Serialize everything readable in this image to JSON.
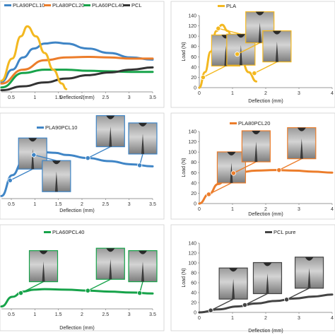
{
  "chart_data": [
    {
      "type": "line",
      "xlabel": "Deflection (mm)",
      "ylabel": "",
      "xlim": [
        0,
        3.5
      ],
      "ylim": [
        0,
        140
      ],
      "xticks": [
        "0.5",
        "1",
        "1.5",
        "2",
        "2.5",
        "3",
        "3.5"
      ],
      "yticks": [],
      "legend": "top",
      "series": [
        {
          "name": "PLA90PCL10",
          "color": "#3f85c6",
          "x": [
            0,
            0.25,
            0.5,
            0.75,
            1,
            1.25,
            1.5,
            2,
            2.5,
            3,
            3.5
          ],
          "y": [
            18,
            40,
            62,
            78,
            87,
            89,
            87,
            78,
            70,
            62,
            58
          ]
        },
        {
          "name": "PLA80PCL20",
          "color": "#ec7d2b",
          "x": [
            0,
            0.5,
            1,
            1.5,
            2,
            2.5,
            3,
            3.5
          ],
          "y": [
            15,
            40,
            57,
            62,
            63,
            62,
            60,
            60
          ]
        },
        {
          "name": "PLA60PCL40",
          "color": "#17a34a",
          "x": [
            0,
            0.5,
            1,
            1.5,
            2,
            2.5,
            3,
            3.5
          ],
          "y": [
            8,
            34,
            40,
            40,
            38,
            37,
            36,
            36
          ]
        },
        {
          "name": "PCL",
          "color": "#333333",
          "x": [
            0,
            0.5,
            1,
            1.5,
            2,
            2.5,
            3,
            3.5
          ],
          "y": [
            3,
            10,
            17,
            24,
            30,
            35,
            40,
            44
          ]
        },
        {
          "name": "",
          "color": "#f3b820",
          "x": [
            0,
            0.25,
            0.45,
            0.6,
            0.8,
            1.0,
            1.2,
            1.4,
            1.5
          ],
          "y": [
            20,
            60,
            100,
            118,
            100,
            70,
            40,
            15,
            5
          ]
        }
      ]
    },
    {
      "type": "line",
      "xlabel": "Deflection (mm)",
      "ylabel": "Load (N)",
      "xlim": [
        0,
        3.5
      ],
      "ylim": [
        0,
        140
      ],
      "xticks": [
        "0",
        "1",
        "2",
        "3",
        "4"
      ],
      "yticks": [
        "0",
        "20",
        "40",
        "60",
        "80",
        "100",
        "120",
        "140"
      ],
      "legend": "top",
      "series": [
        {
          "name": "PLA",
          "color": "#f3b820",
          "x": [
            0,
            0.15,
            0.3,
            0.45,
            0.6,
            0.75,
            0.9,
            1.1,
            1.3,
            1.5
          ],
          "y": [
            0,
            30,
            70,
            110,
            122,
            110,
            85,
            55,
            30,
            12
          ],
          "markers": [
            [
              0.1,
              20
            ],
            [
              0.5,
              115
            ],
            [
              1.0,
              65
            ],
            [
              1.45,
              28
            ]
          ]
        }
      ]
    },
    {
      "type": "line",
      "xlabel": "Deflection (mm)",
      "ylabel": "",
      "xlim": [
        0,
        3.5
      ],
      "ylim": [
        0,
        140
      ],
      "xticks": [
        "0.5",
        "1",
        "1.5",
        "2",
        "2.5",
        "3",
        "3.5"
      ],
      "yticks": [],
      "legend": "top",
      "series": [
        {
          "name": "PLA90PCL10",
          "color": "#3f85c6",
          "x": [
            0,
            0.25,
            0.5,
            0.75,
            1,
            1.25,
            1.5,
            2,
            2.5,
            3,
            3.5
          ],
          "y": [
            5,
            45,
            72,
            85,
            89,
            88,
            84,
            78,
            72,
            66,
            62
          ],
          "markers": [
            [
              0.2,
              35
            ],
            [
              0.75,
              84
            ],
            [
              2.0,
              78
            ],
            [
              3.2,
              64
            ]
          ]
        }
      ]
    },
    {
      "type": "line",
      "xlabel": "Deflection (mm)",
      "ylabel": "Load (N)",
      "xlim": [
        0,
        3.5
      ],
      "ylim": [
        0,
        140
      ],
      "xticks": [
        "0",
        "1",
        "2",
        "3",
        "4"
      ],
      "yticks": [
        "0",
        "20",
        "40",
        "60",
        "80",
        "100",
        "120",
        "140"
      ],
      "legend": "top",
      "series": [
        {
          "name": "PLA80PCL20",
          "color": "#ec7d2b",
          "x": [
            0,
            0.25,
            0.5,
            0.75,
            1,
            1.5,
            2,
            2.5,
            3,
            3.5
          ],
          "y": [
            0,
            18,
            38,
            52,
            60,
            64,
            65,
            64,
            62,
            60
          ],
          "markers": [
            [
              0.25,
              18
            ],
            [
              0.9,
              59
            ],
            [
              2.1,
              65
            ]
          ]
        }
      ]
    },
    {
      "type": "line",
      "xlabel": "Deflection (mm)",
      "ylabel": "",
      "xlim": [
        0,
        3.5
      ],
      "ylim": [
        0,
        140
      ],
      "xticks": [
        "0.5",
        "1",
        "1.5",
        "2",
        "2.5",
        "3",
        "3.5"
      ],
      "yticks": [],
      "legend": "top",
      "series": [
        {
          "name": "PLA60PCL40",
          "color": "#17a34a",
          "x": [
            0,
            0.25,
            0.5,
            0.75,
            1,
            1.5,
            2,
            2.5,
            3,
            3.5
          ],
          "y": [
            5,
            25,
            36,
            40,
            41,
            40,
            38,
            36,
            34,
            32
          ],
          "markers": [
            [
              0.45,
              33
            ],
            [
              2.0,
              38
            ],
            [
              3.2,
              33
            ]
          ]
        }
      ]
    },
    {
      "type": "line",
      "xlabel": "Deflection (mm)",
      "ylabel": "Load (N)",
      "xlim": [
        0,
        3.5
      ],
      "ylim": [
        0,
        140
      ],
      "xticks": [
        "0",
        "1",
        "2",
        "3",
        "4"
      ],
      "yticks": [
        "0",
        "20",
        "40",
        "60",
        "80",
        "100",
        "120",
        "140"
      ],
      "legend": "top",
      "series": [
        {
          "name": "PCL pure",
          "color": "#444444",
          "x": [
            0,
            0.5,
            1,
            1.5,
            2,
            2.5,
            3,
            3.5
          ],
          "y": [
            0,
            6,
            12,
            18,
            23,
            28,
            32,
            36
          ],
          "markers": [
            [
              0.3,
              4
            ],
            [
              1.2,
              15
            ],
            [
              2.3,
              26
            ]
          ]
        }
      ]
    }
  ]
}
